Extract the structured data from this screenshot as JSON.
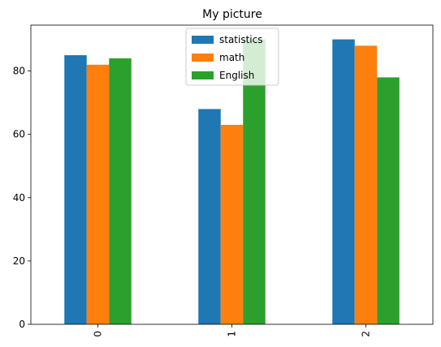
{
  "chart_data": {
    "type": "bar",
    "title": "My picture",
    "xlabel": "",
    "ylabel": "",
    "categories": [
      "0",
      "1",
      "2"
    ],
    "series": [
      {
        "name": "statistics",
        "values": [
          85,
          68,
          90
        ],
        "color": "#1f77b4"
      },
      {
        "name": "math",
        "values": [
          82,
          63,
          88
        ],
        "color": "#ff7f0e"
      },
      {
        "name": "English",
        "values": [
          84,
          90,
          78
        ],
        "color": "#2ca02c"
      }
    ],
    "ylim": [
      0,
      94.5
    ],
    "yticks": [
      0,
      20,
      40,
      60,
      80
    ],
    "grid": false,
    "legend": "upper center",
    "xtick_rotation": 90
  }
}
